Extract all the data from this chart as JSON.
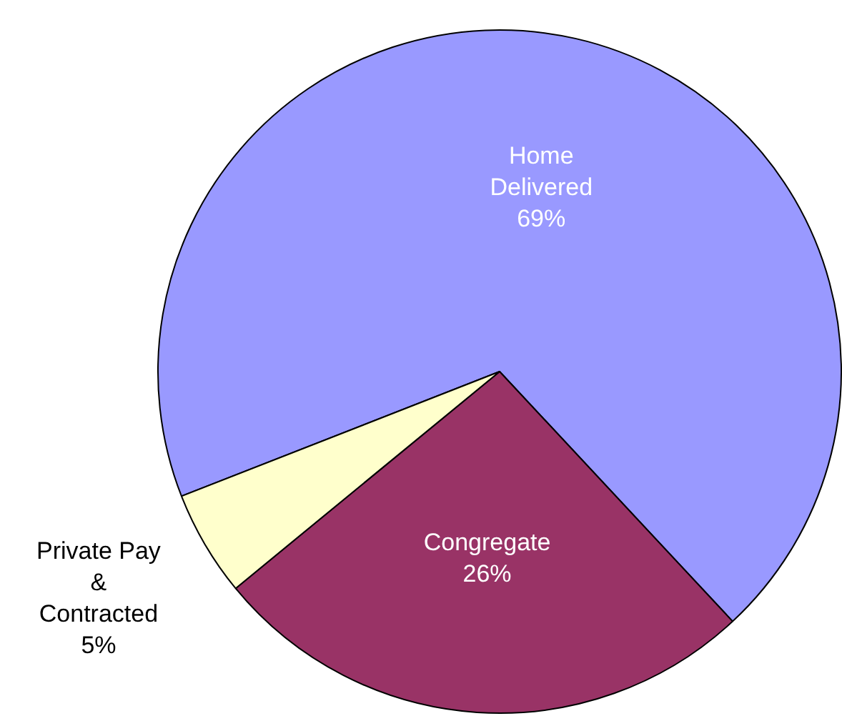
{
  "chart_data": {
    "type": "pie",
    "categories": [
      "Home Delivered",
      "Congregate",
      "Private Pay & Contracted"
    ],
    "values": [
      69,
      26,
      5
    ],
    "value_labels": [
      "69%",
      "26%",
      "5%"
    ],
    "colors": [
      "#9999ff",
      "#993366",
      "#ffffcc"
    ],
    "legend": false
  }
}
